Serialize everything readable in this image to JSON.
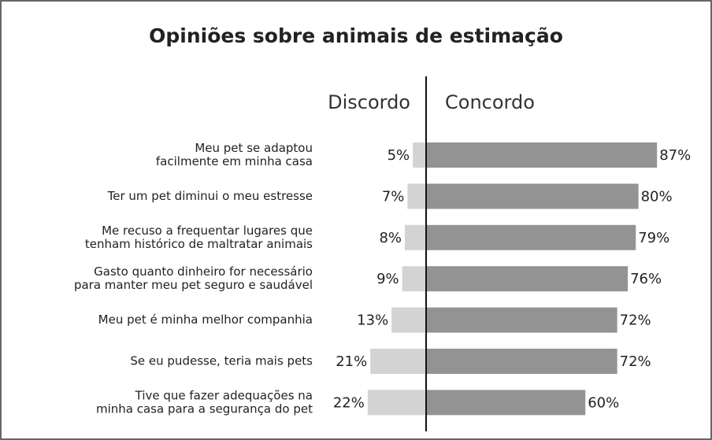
{
  "chart_data": {
    "type": "diverging-bar",
    "title": "Opiniões sobre animais de estimação",
    "categories": [
      [
        "Meu pet se adaptou",
        "facilmente em minha casa"
      ],
      [
        "Ter um pet diminui o meu estresse"
      ],
      [
        "Me recuso a frequentar lugares que",
        "tenham histórico de maltratar animais"
      ],
      [
        "Gasto quanto dinheiro for necessário",
        "para manter meu pet seguro e saudável"
      ],
      [
        "Meu pet é minha melhor companhia"
      ],
      [
        "Se eu pudesse, teria mais pets"
      ],
      [
        "Tive que fazer adequações na",
        "minha casa para a segurança do pet"
      ]
    ],
    "series": [
      {
        "name": "Discordo",
        "color": "#d3d3d3",
        "values": [
          5,
          7,
          8,
          9,
          13,
          21,
          22
        ],
        "value_labels": [
          "5%",
          "7%",
          "8%",
          "9%",
          "13%",
          "21%",
          "22%"
        ]
      },
      {
        "name": "Concordo",
        "color": "#939393",
        "values": [
          87,
          80,
          79,
          76,
          72,
          72,
          60
        ],
        "value_labels": [
          "87%",
          "80%",
          "79%",
          "76%",
          "72%",
          "72%",
          "60%"
        ]
      }
    ]
  }
}
